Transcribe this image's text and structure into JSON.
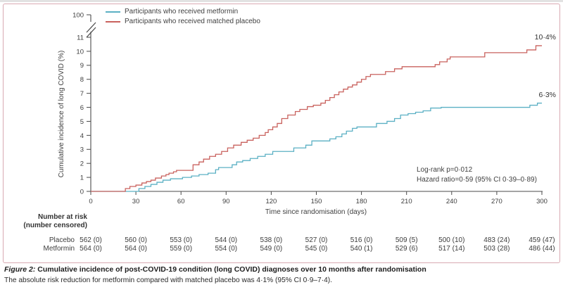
{
  "chart_data": {
    "type": "line",
    "subtype": "kaplan-meier-cumulative-incidence-step",
    "xlabel": "Time since randomisation (days)",
    "ylabel": "Cumulative incidence of long COVID (%)",
    "xlim": [
      0,
      300
    ],
    "ylim": [
      0,
      11
    ],
    "x_ticks": [
      0,
      30,
      60,
      90,
      120,
      150,
      180,
      210,
      240,
      270,
      300
    ],
    "y_ticks": [
      0,
      1,
      2,
      3,
      4,
      5,
      6,
      7,
      8,
      9,
      10,
      11
    ],
    "y_axis_break_top_label": "100",
    "grid": false,
    "legend_position": "top-left-inside",
    "axis_color": "#4a4a4a",
    "series": [
      {
        "name": "Participants who received metformin",
        "color": "#5bb0c4",
        "end_label": "6·3%",
        "final_value": 6.3,
        "points": [
          [
            0,
            0
          ],
          [
            32,
            0.2
          ],
          [
            36,
            0.35
          ],
          [
            40,
            0.5
          ],
          [
            44,
            0.65
          ],
          [
            48,
            0.8
          ],
          [
            53,
            0.9
          ],
          [
            61,
            1.0
          ],
          [
            67,
            1.1
          ],
          [
            72,
            1.2
          ],
          [
            78,
            1.3
          ],
          [
            83,
            1.55
          ],
          [
            85,
            1.7
          ],
          [
            94,
            1.9
          ],
          [
            97,
            2.1
          ],
          [
            101,
            2.2
          ],
          [
            106,
            2.35
          ],
          [
            111,
            2.5
          ],
          [
            116,
            2.65
          ],
          [
            121,
            2.85
          ],
          [
            135,
            3.1
          ],
          [
            143,
            3.3
          ],
          [
            147,
            3.6
          ],
          [
            159,
            3.75
          ],
          [
            163,
            3.9
          ],
          [
            167,
            4.1
          ],
          [
            170,
            4.3
          ],
          [
            174,
            4.5
          ],
          [
            177,
            4.6
          ],
          [
            190,
            4.85
          ],
          [
            197,
            5.0
          ],
          [
            202,
            5.2
          ],
          [
            206,
            5.45
          ],
          [
            211,
            5.55
          ],
          [
            216,
            5.65
          ],
          [
            221,
            5.75
          ],
          [
            226,
            5.95
          ],
          [
            233,
            6.0
          ],
          [
            292,
            6.15
          ],
          [
            297,
            6.3
          ]
        ]
      },
      {
        "name": "Participants who received matched placebo",
        "color": "#c9625e",
        "end_label": "10·4%",
        "final_value": 10.4,
        "points": [
          [
            0,
            0
          ],
          [
            23,
            0.2
          ],
          [
            26,
            0.35
          ],
          [
            30,
            0.45
          ],
          [
            34,
            0.6
          ],
          [
            37,
            0.7
          ],
          [
            40,
            0.8
          ],
          [
            43,
            0.95
          ],
          [
            47,
            1.1
          ],
          [
            50,
            1.2
          ],
          [
            52,
            1.3
          ],
          [
            55,
            1.4
          ],
          [
            57,
            1.5
          ],
          [
            68,
            1.9
          ],
          [
            72,
            2.1
          ],
          [
            75,
            2.3
          ],
          [
            79,
            2.5
          ],
          [
            83,
            2.65
          ],
          [
            87,
            2.85
          ],
          [
            91,
            3.1
          ],
          [
            95,
            3.3
          ],
          [
            100,
            3.5
          ],
          [
            104,
            3.65
          ],
          [
            108,
            3.8
          ],
          [
            112,
            4.0
          ],
          [
            116,
            4.2
          ],
          [
            118,
            4.4
          ],
          [
            121,
            4.6
          ],
          [
            124,
            4.85
          ],
          [
            127,
            5.2
          ],
          [
            131,
            5.45
          ],
          [
            136,
            5.7
          ],
          [
            139,
            5.85
          ],
          [
            144,
            6.05
          ],
          [
            148,
            6.15
          ],
          [
            153,
            6.3
          ],
          [
            156,
            6.5
          ],
          [
            159,
            6.7
          ],
          [
            162,
            6.9
          ],
          [
            165,
            7.1
          ],
          [
            168,
            7.3
          ],
          [
            171,
            7.45
          ],
          [
            174,
            7.6
          ],
          [
            177,
            7.8
          ],
          [
            180,
            8.0
          ],
          [
            183,
            8.2
          ],
          [
            186,
            8.35
          ],
          [
            196,
            8.55
          ],
          [
            202,
            8.75
          ],
          [
            207,
            8.9
          ],
          [
            229,
            9.05
          ],
          [
            232,
            9.25
          ],
          [
            237,
            9.45
          ],
          [
            239,
            9.6
          ],
          [
            262,
            9.9
          ],
          [
            290,
            10.1
          ],
          [
            296,
            10.4
          ]
        ]
      }
    ],
    "annotations": [
      "Log-rank p=0·012",
      "Hazard ratio=0·59 (95% CI 0·39–0·89)"
    ]
  },
  "risk_table": {
    "header_line1": "Number at risk",
    "header_line2": "(number censored)",
    "rows": [
      {
        "label": "Placebo",
        "values": [
          "562 (0)",
          "560 (0)",
          "553 (0)",
          "544 (0)",
          "538 (0)",
          "527 (0)",
          "516 (0)",
          "509 (5)",
          "500 (10)",
          "483 (24)",
          "459 (47)"
        ]
      },
      {
        "label": "Metformin",
        "values": [
          "564 (0)",
          "564 (0)",
          "559 (0)",
          "554 (0)",
          "549 (0)",
          "545 (0)",
          "540 (1)",
          "529 (6)",
          "517 (14)",
          "503 (28)",
          "486 (44)"
        ]
      }
    ]
  },
  "caption": {
    "prefix": "Figure 2:",
    "title": "Cumulative incidence of post-COVID-19 condition (long COVID) diagnoses over 10 months after randomisation",
    "body": "The absolute risk reduction for metformin compared with matched placebo was 4·1% (95% CI 0·9–7·4)."
  }
}
